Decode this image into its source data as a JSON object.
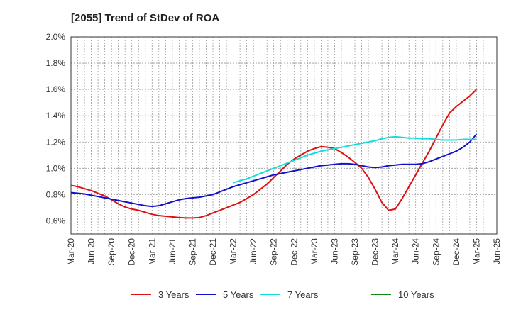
{
  "chart_data": {
    "type": "line",
    "title": "[2055]  Trend of StDev of ROA",
    "xlabel": "",
    "ylabel": "",
    "ylim": [
      0.5,
      2.0
    ],
    "y_ticks": [
      "0.6%",
      "0.8%",
      "1.0%",
      "1.2%",
      "1.4%",
      "1.6%",
      "1.8%",
      "2.0%"
    ],
    "y_tick_values": [
      0.6,
      0.8,
      1.0,
      1.2,
      1.4,
      1.6,
      1.8,
      2.0
    ],
    "x_ticks": [
      "Mar-20",
      "Jun-20",
      "Sep-20",
      "Dec-20",
      "Mar-21",
      "Jun-21",
      "Sep-21",
      "Dec-21",
      "Mar-22",
      "Jun-22",
      "Sep-22",
      "Dec-22",
      "Mar-23",
      "Jun-23",
      "Sep-23",
      "Dec-23",
      "Mar-24",
      "Jun-24",
      "Sep-24",
      "Dec-24",
      "Mar-25",
      "Jun-25"
    ],
    "grid": true,
    "legend_position": "bottom",
    "series": [
      {
        "name": "3 Years",
        "color": "#dd1111",
        "x": [
          "Mar-20",
          "Apr-20",
          "May-20",
          "Jun-20",
          "Jul-20",
          "Aug-20",
          "Sep-20",
          "Oct-20",
          "Nov-20",
          "Dec-20",
          "Jan-21",
          "Feb-21",
          "Mar-21",
          "Apr-21",
          "May-21",
          "Jun-21",
          "Jul-21",
          "Aug-21",
          "Sep-21",
          "Oct-21",
          "Nov-21",
          "Dec-21",
          "Jan-22",
          "Feb-22",
          "Mar-22",
          "Apr-22",
          "May-22",
          "Jun-22",
          "Jul-22",
          "Aug-22",
          "Sep-22",
          "Oct-22",
          "Nov-22",
          "Dec-22",
          "Jan-23",
          "Feb-23",
          "Mar-23",
          "Apr-23",
          "May-23",
          "Jun-23",
          "Jul-23",
          "Aug-23",
          "Sep-23",
          "Oct-23",
          "Nov-23",
          "Dec-23",
          "Jan-24",
          "Feb-24",
          "Mar-24",
          "Apr-24",
          "May-24",
          "Jun-24",
          "Jul-24",
          "Aug-24",
          "Sep-24",
          "Oct-24",
          "Nov-24",
          "Dec-24",
          "Jan-25",
          "Feb-25",
          "Mar-25"
        ],
        "values": [
          0.87,
          0.86,
          0.845,
          0.83,
          0.81,
          0.79,
          0.76,
          0.73,
          0.705,
          0.69,
          0.68,
          0.665,
          0.65,
          0.64,
          0.635,
          0.63,
          0.625,
          0.622,
          0.622,
          0.625,
          0.64,
          0.66,
          0.68,
          0.7,
          0.72,
          0.74,
          0.77,
          0.8,
          0.84,
          0.88,
          0.93,
          0.98,
          1.03,
          1.07,
          1.1,
          1.13,
          1.15,
          1.165,
          1.16,
          1.15,
          1.12,
          1.085,
          1.045,
          1.0,
          0.93,
          0.84,
          0.74,
          0.68,
          0.69,
          0.77,
          0.86,
          0.95,
          1.04,
          1.13,
          1.23,
          1.33,
          1.42,
          1.47,
          1.51,
          1.55,
          1.6
        ]
      },
      {
        "name": "5 Years",
        "color": "#1111cc",
        "x": [
          "Mar-20",
          "Apr-20",
          "May-20",
          "Jun-20",
          "Jul-20",
          "Aug-20",
          "Sep-20",
          "Oct-20",
          "Nov-20",
          "Dec-20",
          "Jan-21",
          "Feb-21",
          "Mar-21",
          "Apr-21",
          "May-21",
          "Jun-21",
          "Jul-21",
          "Aug-21",
          "Sep-21",
          "Oct-21",
          "Nov-21",
          "Dec-21",
          "Jan-22",
          "Feb-22",
          "Mar-22",
          "Apr-22",
          "May-22",
          "Jun-22",
          "Jul-22",
          "Aug-22",
          "Sep-22",
          "Oct-22",
          "Nov-22",
          "Dec-22",
          "Jan-23",
          "Feb-23",
          "Mar-23",
          "Apr-23",
          "May-23",
          "Jun-23",
          "Jul-23",
          "Aug-23",
          "Sep-23",
          "Oct-23",
          "Nov-23",
          "Dec-23",
          "Jan-24",
          "Feb-24",
          "Mar-24",
          "Apr-24",
          "May-24",
          "Jun-24",
          "Jul-24",
          "Aug-24",
          "Sep-24",
          "Oct-24",
          "Nov-24",
          "Dec-24",
          "Jan-25",
          "Feb-25",
          "Mar-25"
        ],
        "values": [
          0.815,
          0.81,
          0.805,
          0.795,
          0.785,
          0.775,
          0.765,
          0.755,
          0.745,
          0.735,
          0.725,
          0.715,
          0.71,
          0.715,
          0.73,
          0.745,
          0.76,
          0.77,
          0.775,
          0.78,
          0.79,
          0.8,
          0.82,
          0.84,
          0.86,
          0.875,
          0.89,
          0.905,
          0.92,
          0.935,
          0.95,
          0.96,
          0.97,
          0.98,
          0.99,
          1.0,
          1.01,
          1.02,
          1.025,
          1.03,
          1.035,
          1.035,
          1.03,
          1.02,
          1.01,
          1.005,
          1.01,
          1.02,
          1.025,
          1.03,
          1.03,
          1.03,
          1.035,
          1.05,
          1.07,
          1.09,
          1.11,
          1.13,
          1.16,
          1.2,
          1.26
        ]
      },
      {
        "name": "7 Years",
        "color": "#11dddd",
        "x": [
          "Mar-22",
          "Apr-22",
          "May-22",
          "Jun-22",
          "Jul-22",
          "Aug-22",
          "Sep-22",
          "Oct-22",
          "Nov-22",
          "Dec-22",
          "Jan-23",
          "Feb-23",
          "Mar-23",
          "Apr-23",
          "May-23",
          "Jun-23",
          "Jul-23",
          "Aug-23",
          "Sep-23",
          "Oct-23",
          "Nov-23",
          "Dec-23",
          "Jan-24",
          "Feb-24",
          "Mar-24",
          "Apr-24",
          "May-24",
          "Jun-24",
          "Jul-24",
          "Aug-24",
          "Sep-24",
          "Oct-24",
          "Nov-24",
          "Dec-24",
          "Jan-25",
          "Feb-25",
          "Mar-25"
        ],
        "values": [
          0.89,
          0.905,
          0.92,
          0.94,
          0.96,
          0.98,
          1.0,
          1.02,
          1.04,
          1.06,
          1.08,
          1.1,
          1.115,
          1.13,
          1.14,
          1.15,
          1.16,
          1.17,
          1.18,
          1.19,
          1.2,
          1.21,
          1.225,
          1.235,
          1.24,
          1.235,
          1.23,
          1.23,
          1.225,
          1.225,
          1.22,
          1.215,
          1.215,
          1.215,
          1.22,
          1.22,
          1.22
        ]
      },
      {
        "name": "10 Years",
        "color": "#118811",
        "x": [],
        "values": []
      }
    ]
  }
}
